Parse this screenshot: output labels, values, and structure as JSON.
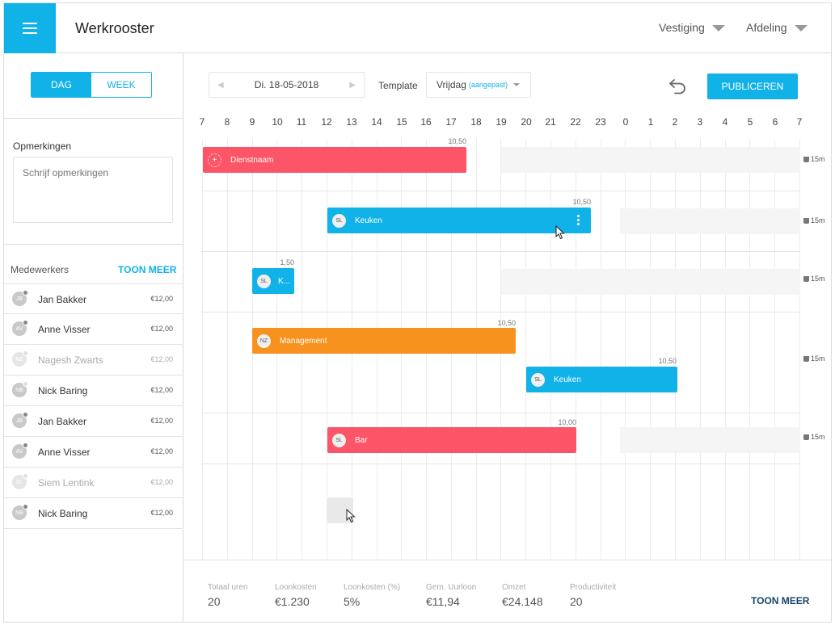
{
  "header": {
    "title": "Werkrooster",
    "location_label": "Vestiging",
    "department_label": "Afdeling"
  },
  "left": {
    "view_toggle": {
      "day": "DAG",
      "week": "WEEK",
      "selected": "DAG"
    },
    "notes": {
      "label": "Opmerkingen",
      "placeholder": "Schrijf opmerkingen"
    },
    "employees": {
      "label": "Medewerkers",
      "more": "TOON MEER",
      "items": [
        {
          "initials": "JB",
          "name": "Jan Bakker",
          "rate": "€12,00"
        },
        {
          "initials": "AV",
          "name": "Anne Visser",
          "rate": "€12,00"
        },
        {
          "initials": "NZ",
          "name": "Nagesh Zwarts",
          "rate": "€12,00"
        },
        {
          "initials": "NB",
          "name": "Nick Baring",
          "rate": "€12,00"
        },
        {
          "initials": "JB",
          "name": "Jan Bakker",
          "rate": "€12,00"
        },
        {
          "initials": "AV",
          "name": "Anne Visser",
          "rate": "€12,00"
        },
        {
          "initials": "SL",
          "name": "Siem Lentink",
          "rate": "€12,00"
        },
        {
          "initials": "NB",
          "name": "Nick Baring",
          "rate": "€12,00"
        }
      ]
    }
  },
  "toolbar": {
    "date": "Di. 18-05-2018",
    "prev_icon": "◀",
    "next_icon": "▶",
    "template_label": "Template",
    "template_value": "Vrijdag",
    "template_note": "(aangepast)",
    "publish": "PUBLICEREN"
  },
  "timeline": {
    "hours": [
      "7",
      "8",
      "9",
      "10",
      "11",
      "12",
      "13",
      "14",
      "15",
      "16",
      "17",
      "18",
      "19",
      "20",
      "21",
      "22",
      "23",
      "0",
      "1",
      "2",
      "3",
      "4",
      "5",
      "6",
      "7"
    ],
    "break_label": "15m",
    "shifts": [
      {
        "label": "Dienstnaam",
        "badge": "+",
        "hours": "10,50",
        "color": "#fb5567"
      },
      {
        "label": "Keuken",
        "badge": "SL",
        "hours": "10,50",
        "color": "#11b2e8"
      },
      {
        "label": "K...",
        "badge": "SL",
        "hours": "1,50",
        "color": "#11b2e8"
      },
      {
        "label": "Management",
        "badge": "NZ",
        "hours": "10,50",
        "color": "#f7921e"
      },
      {
        "label": "Keuken",
        "badge": "SL",
        "hours": "10,50",
        "color": "#11b2e8"
      },
      {
        "label": "Bar",
        "badge": "SL",
        "hours": "10,00",
        "color": "#fb5567"
      }
    ]
  },
  "footer": {
    "stats": [
      {
        "label": "Totaal uren",
        "value": "20"
      },
      {
        "label": "Loonkosten",
        "value": "€1.230"
      },
      {
        "label": "Loonkosten (%)",
        "value": "5%"
      },
      {
        "label": "Gem. Uurloon",
        "value": "€11,94"
      },
      {
        "label": "Omzet",
        "value": "€24.148"
      },
      {
        "label": "Productiviteit",
        "value": "20"
      }
    ],
    "more": "TOON MEER"
  }
}
